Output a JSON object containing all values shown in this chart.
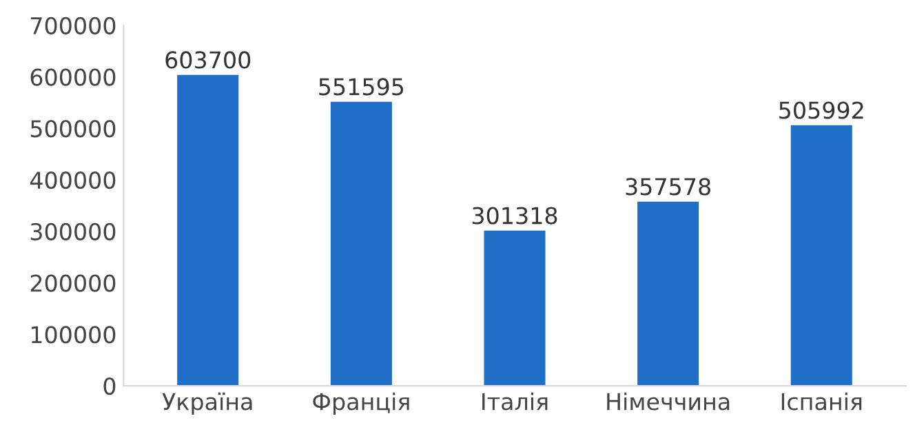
{
  "chart_data": {
    "type": "bar",
    "categories": [
      "Україна",
      "Франція",
      "Італія",
      "Німеччина",
      "Іспанія"
    ],
    "values": [
      603700,
      551595,
      301318,
      357578,
      505992
    ],
    "color": "#1f6fc8",
    "ylim": [
      0,
      700000
    ],
    "yticks": [
      0,
      100000,
      200000,
      300000,
      400000,
      500000,
      600000,
      700000
    ],
    "data_labels": true,
    "grid": false,
    "legend": false
  }
}
